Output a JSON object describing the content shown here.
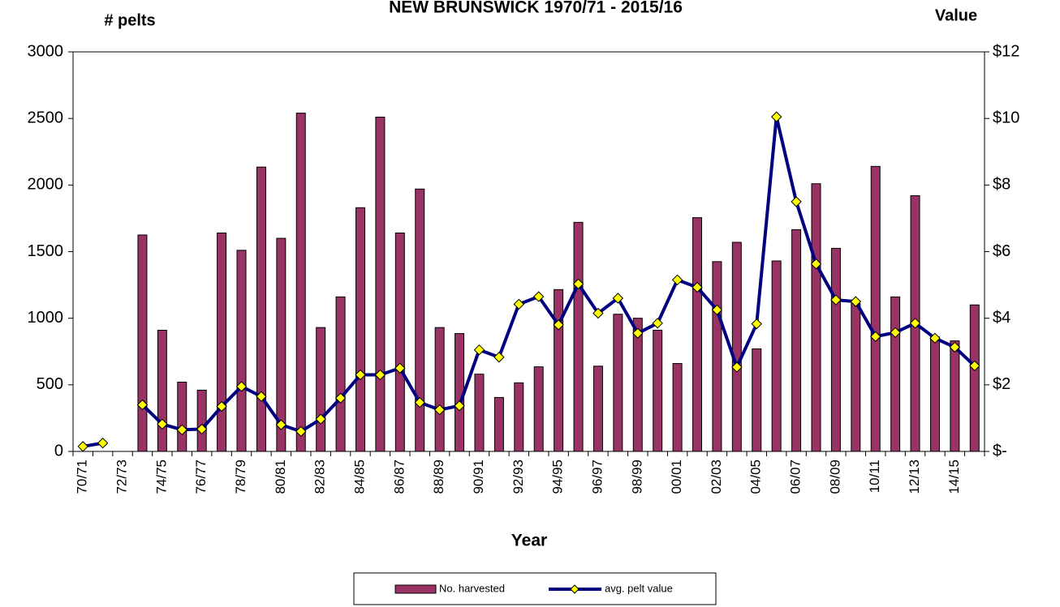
{
  "chart_data": {
    "type": "bar_line",
    "title": "NEW BRUNSWICK 1970/71 - 2015/16",
    "y_label": "# pelts",
    "y2_label": "Value",
    "x_label": "Year",
    "categories": [
      "70/71",
      null,
      "72/73",
      null,
      "74/75",
      null,
      "76/77",
      null,
      "78/79",
      null,
      "80/81",
      null,
      "82/83",
      null,
      "84/85",
      null,
      "86/87",
      null,
      "88/89",
      null,
      "90/91",
      null,
      "92/93",
      null,
      "94/95",
      null,
      "96/97",
      null,
      "98/99",
      null,
      "00/01",
      null,
      "02/03",
      null,
      "04/05",
      null,
      "06/07",
      null,
      "08/09",
      null,
      "10/11",
      null,
      "12/13",
      null,
      "14/15",
      null
    ],
    "series": [
      {
        "name": "No. harvested",
        "type": "bar",
        "color": "#993366",
        "values": [
          0,
          0,
          0,
          1625,
          910,
          520,
          460,
          1640,
          1510,
          2135,
          1600,
          2540,
          930,
          1160,
          1830,
          2510,
          1640,
          1970,
          930,
          885,
          580,
          405,
          515,
          635,
          1215,
          1720,
          640,
          1030,
          1000,
          910,
          660,
          1755,
          1425,
          1570,
          770,
          1430,
          1665,
          2010,
          1525,
          1110,
          2140,
          1160,
          1920,
          860,
          830,
          1100
        ]
      },
      {
        "name": "avg. pelt value",
        "type": "line",
        "axis": "y2",
        "color": "#000080",
        "marker_color": "#ffff00",
        "values": [
          0.15,
          0.25,
          null,
          1.4,
          0.82,
          0.65,
          0.67,
          1.35,
          1.95,
          1.65,
          0.8,
          0.6,
          0.97,
          1.6,
          2.3,
          2.3,
          2.5,
          1.47,
          1.25,
          1.37,
          3.05,
          2.83,
          4.42,
          4.65,
          3.8,
          5.03,
          4.15,
          4.6,
          3.55,
          3.85,
          5.15,
          4.93,
          4.25,
          2.53,
          3.83,
          10.05,
          7.5,
          5.63,
          4.55,
          4.5,
          3.45,
          3.57,
          3.85,
          3.4,
          3.13,
          2.57
        ]
      }
    ],
    "ylim": [
      0,
      3000
    ],
    "yticks": [
      0,
      500,
      1000,
      1500,
      2000,
      2500,
      3000
    ],
    "y2lim": [
      0,
      12
    ],
    "y2ticks": [
      {
        "value": 0,
        "label": "$-"
      },
      {
        "value": 2,
        "label": "$2"
      },
      {
        "value": 4,
        "label": "$4"
      },
      {
        "value": 6,
        "label": "$6"
      },
      {
        "value": 8,
        "label": "$8"
      },
      {
        "value": 10,
        "label": "$10"
      },
      {
        "value": 12,
        "label": "$12"
      }
    ],
    "legend": "bottom"
  }
}
